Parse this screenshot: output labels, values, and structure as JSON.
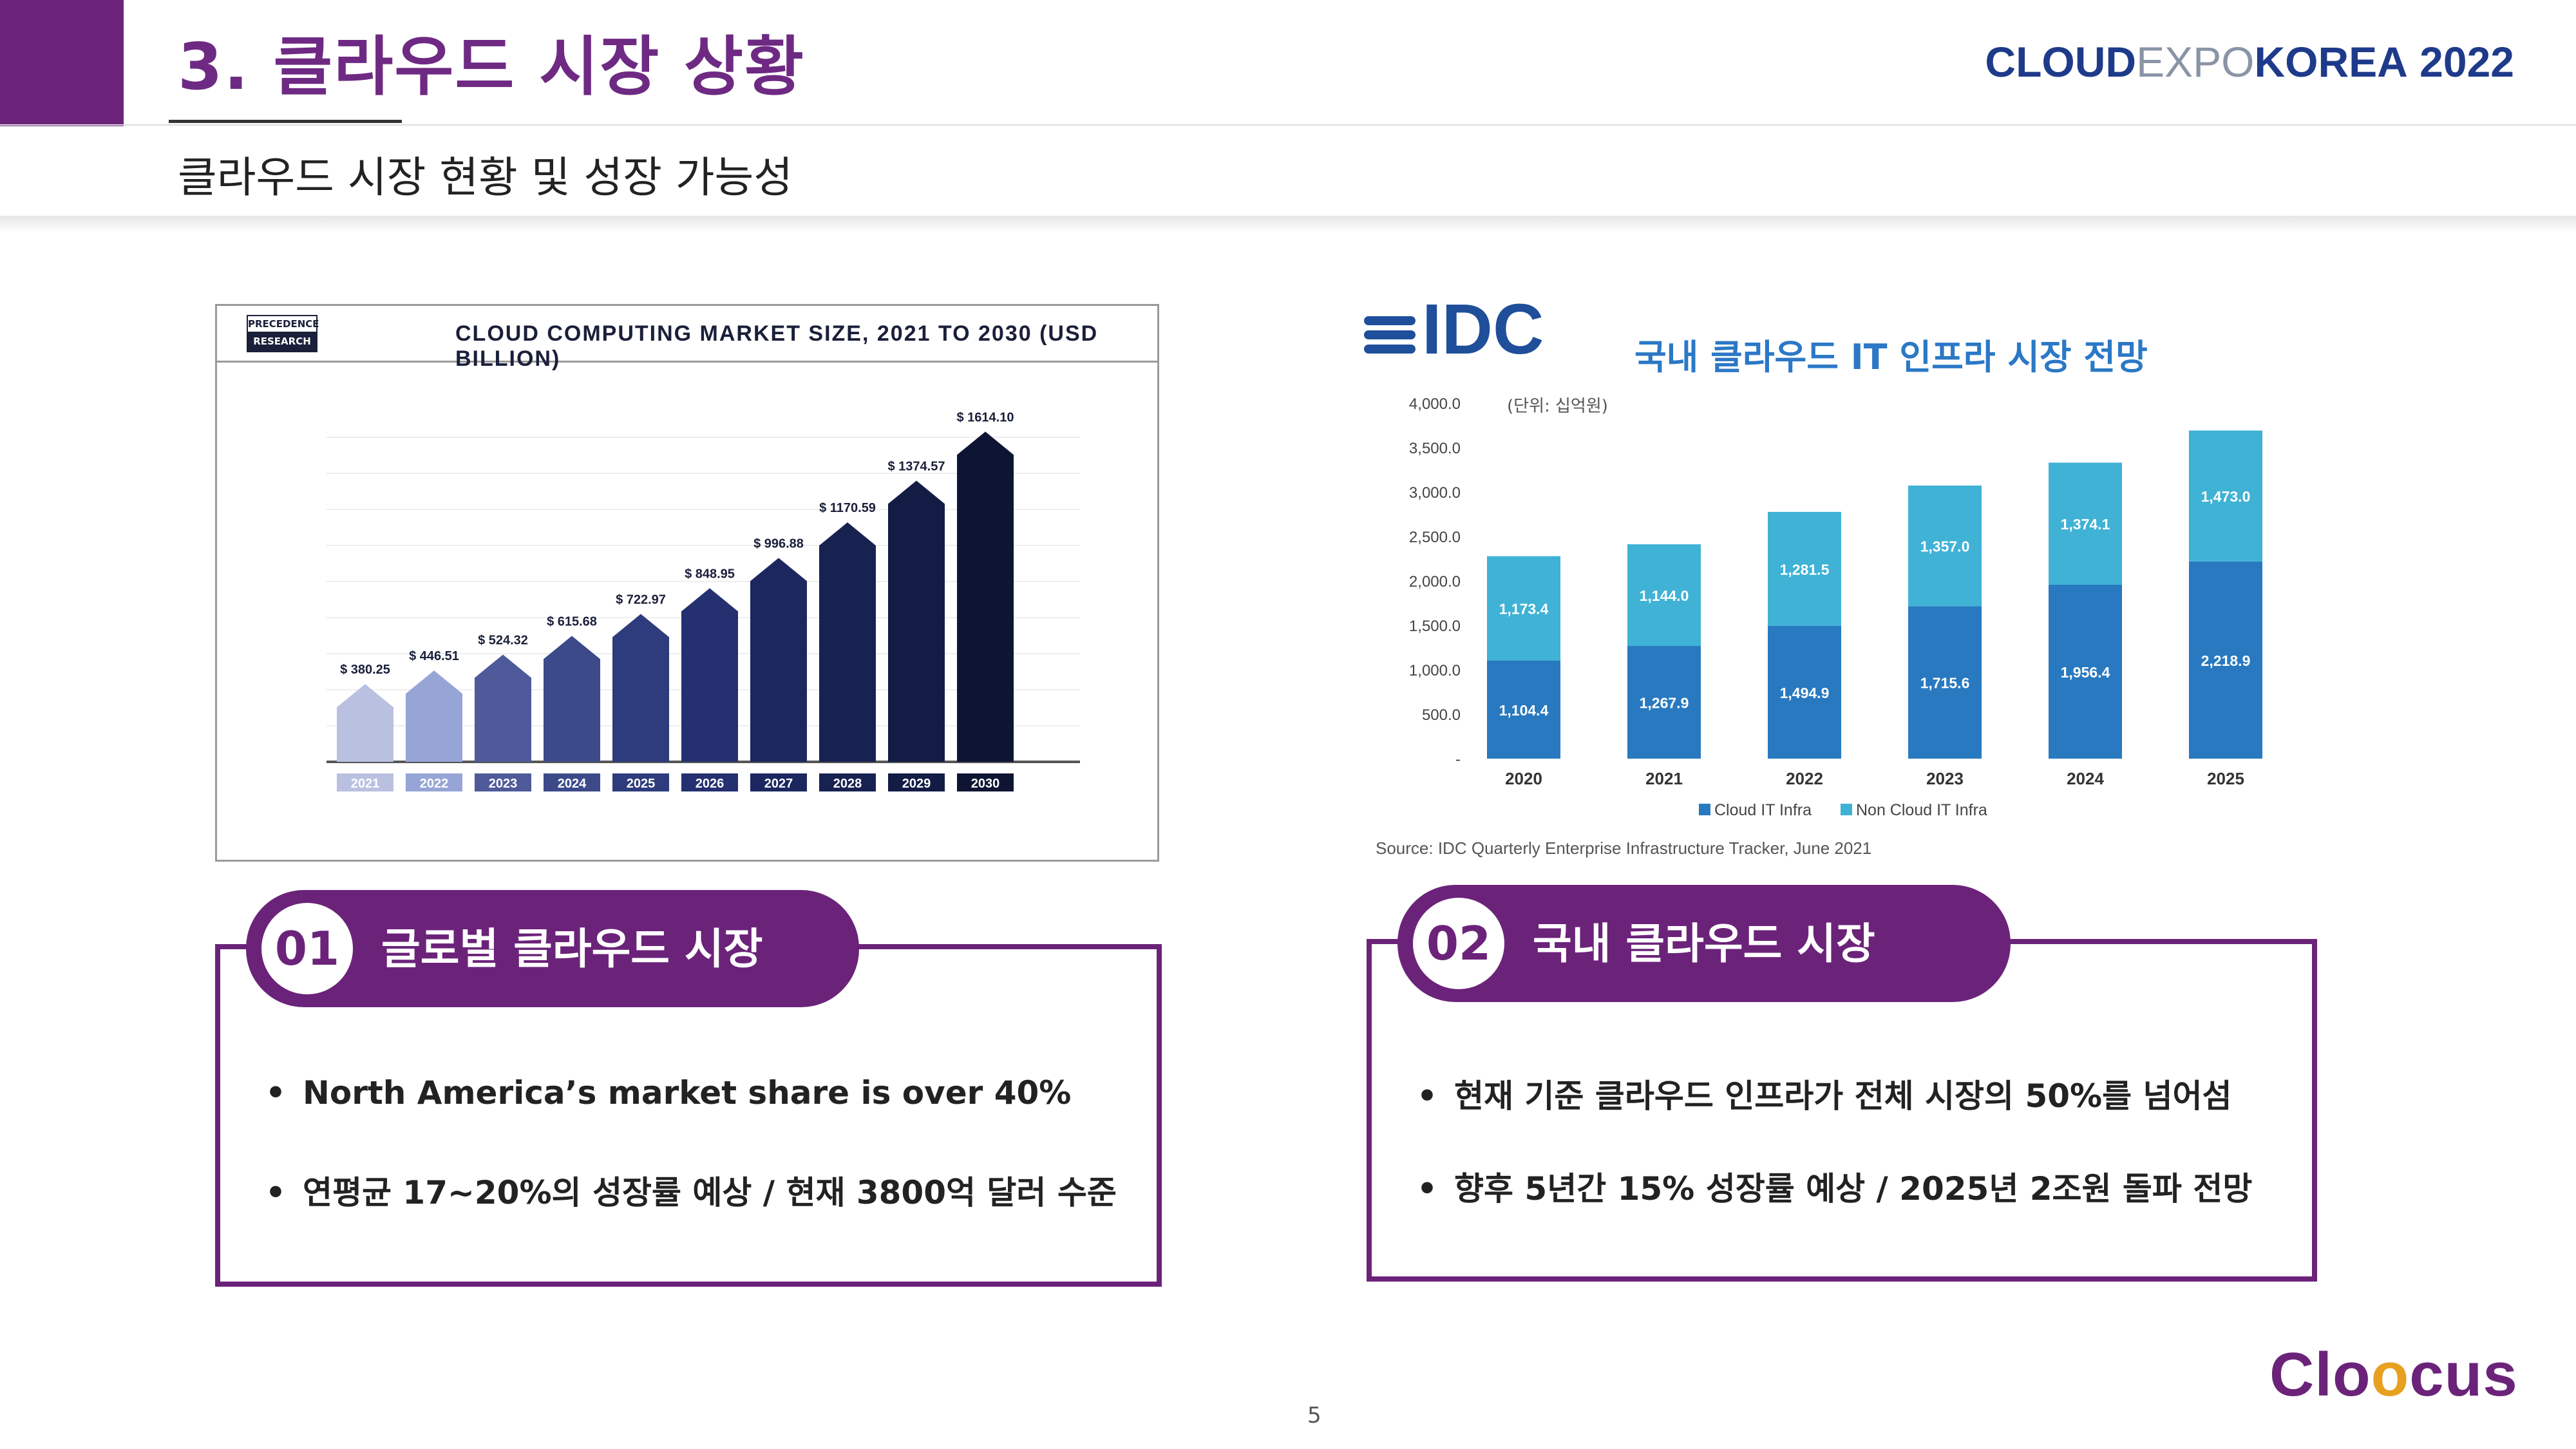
{
  "header": {
    "title": "3. 클라우드 시장 상황",
    "subtitle": "클라우드 시장 현황 및 성장 가능성",
    "event_logo": {
      "cloud": "CLOUD",
      "expo": "EXPO",
      "korea": "KOREA",
      "year": "2022"
    }
  },
  "left_chart": {
    "logo_text": [
      "PRECEDENCE",
      "RESEARCH"
    ],
    "chart_data": {
      "type": "bar",
      "title": "CLOUD COMPUTING MARKET SIZE, 2021 TO 2030 (USD BILLION)",
      "categories": [
        "2021",
        "2022",
        "2023",
        "2024",
        "2025",
        "2026",
        "2027",
        "2028",
        "2029",
        "2030"
      ],
      "values": [
        380.25,
        446.51,
        524.32,
        615.68,
        722.97,
        848.95,
        996.88,
        1170.59,
        1374.57,
        1614.1
      ],
      "labels": [
        "$ 380.25",
        "$ 446.51",
        "$ 524.32",
        "$ 615.68",
        "$ 722.97",
        "$ 848.95",
        "$ 996.88",
        "$ 1170.59",
        "$ 1374.57",
        "$ 1614.10"
      ],
      "colors": [
        "#b9c0e0",
        "#97a5d6",
        "#4e5a99",
        "#3c4a8a",
        "#2e3b7c",
        "#243070",
        "#1c275f",
        "#182251",
        "#131c45",
        "#0e1533"
      ],
      "ylim": [
        0,
        1700
      ]
    }
  },
  "right_chart": {
    "logo": "IDC",
    "title": "국내 클라우드 IT 인프라 시장 전망",
    "unit": "(단위: 십억원)",
    "source": "Source: IDC Quarterly Enterprise Infrastructure Tracker, June 2021",
    "chart_data": {
      "type": "bar",
      "stacked": true,
      "categories": [
        "2020",
        "2021",
        "2022",
        "2023",
        "2024",
        "2025"
      ],
      "series": [
        {
          "name": "Cloud IT Infra",
          "color": "#2879c0",
          "values": [
            1104.4,
            1267.9,
            1494.9,
            1715.6,
            1956.4,
            2218.9
          ],
          "labels": [
            "1,104.4",
            "1,267.9",
            "1,494.9",
            "1,715.6",
            "1,956.4",
            "2,218.9"
          ]
        },
        {
          "name": "Non Cloud IT Infra",
          "color": "#3fb2d6",
          "values": [
            1173.4,
            1144.0,
            1281.5,
            1357.0,
            1374.1,
            1473.0
          ],
          "labels": [
            "1,173.4",
            "1,144.0",
            "1,281.5",
            "1,357.0",
            "1,374.1",
            "1,473.0"
          ]
        }
      ],
      "y_ticks": [
        "4,000.0",
        "3,500.0",
        "3,000.0",
        "2,500.0",
        "2,000.0",
        "1,500.0",
        "1,000.0",
        "500.0",
        "-"
      ],
      "ylim": [
        0,
        4000
      ],
      "legend": "bottom"
    }
  },
  "cards": {
    "left": {
      "number": "01",
      "title": "글로벌 클라우드 시장",
      "bullets": [
        "North America’s market share is over 40%",
        "연평균 17~20%의 성장률 예상 / 현재 3800억 달러 수준"
      ]
    },
    "right": {
      "number": "02",
      "title": "국내 클라우드 시장",
      "bullets": [
        "현재 기준 클라우드 인프라가 전체 시장의 50%를 넘어섬",
        "향후 5년간 15% 성장률 예상 / 2025년 2조원 돌파 전망"
      ]
    }
  },
  "footer": {
    "page_number": "5",
    "brand": {
      "pre": "Clo",
      "dot": "o",
      "post": "cus"
    }
  }
}
